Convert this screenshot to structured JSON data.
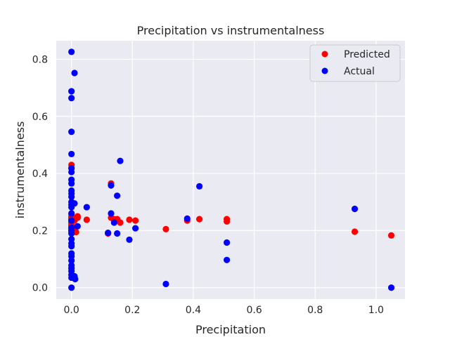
{
  "chart_data": {
    "type": "scatter",
    "title": "Precipitation vs instrumentalness",
    "xlabel": "Precipitation",
    "ylabel": "instrumentalness",
    "xlim": [
      -0.05,
      1.095
    ],
    "ylim": [
      -0.04,
      0.865
    ],
    "xticks": [
      0.0,
      0.2,
      0.4,
      0.6,
      0.8,
      1.0
    ],
    "xtick_labels": [
      "0.0",
      "0.2",
      "0.4",
      "0.6",
      "0.8",
      "1.0"
    ],
    "yticks": [
      0.0,
      0.2,
      0.4,
      0.6,
      0.8
    ],
    "ytick_labels": [
      "0.0",
      "0.2",
      "0.4",
      "0.6",
      "0.8"
    ],
    "grid": true,
    "legend_position": "top-right",
    "colors": {
      "background": "#EAEAF2",
      "grid": "#FFFFFF",
      "predicted": "#FF0000",
      "actual": "#0000FF"
    },
    "series": [
      {
        "name": "Predicted",
        "color": "#FF0000",
        "points": [
          [
            0.0,
            0.43
          ],
          [
            0.0,
            0.42
          ],
          [
            0.0,
            0.26
          ],
          [
            0.0,
            0.25
          ],
          [
            0.0,
            0.245
          ],
          [
            0.0,
            0.24
          ],
          [
            0.0,
            0.235
          ],
          [
            0.0,
            0.23
          ],
          [
            0.0,
            0.225
          ],
          [
            0.0,
            0.22
          ],
          [
            0.0,
            0.215
          ],
          [
            0.0,
            0.21
          ],
          [
            0.0,
            0.205
          ],
          [
            0.0,
            0.2
          ],
          [
            0.0,
            0.195
          ],
          [
            0.005,
            0.245
          ],
          [
            0.01,
            0.2
          ],
          [
            0.01,
            0.235
          ],
          [
            0.015,
            0.195
          ],
          [
            0.02,
            0.245
          ],
          [
            0.02,
            0.25
          ],
          [
            0.05,
            0.238
          ],
          [
            0.12,
            0.19
          ],
          [
            0.13,
            0.245
          ],
          [
            0.13,
            0.365
          ],
          [
            0.14,
            0.24
          ],
          [
            0.15,
            0.24
          ],
          [
            0.16,
            0.228
          ],
          [
            0.19,
            0.238
          ],
          [
            0.21,
            0.235
          ],
          [
            0.31,
            0.205
          ],
          [
            0.38,
            0.235
          ],
          [
            0.42,
            0.24
          ],
          [
            0.51,
            0.24
          ],
          [
            0.51,
            0.232
          ],
          [
            0.93,
            0.196
          ],
          [
            1.05,
            0.183
          ]
        ]
      },
      {
        "name": "Actual",
        "color": "#0000FF",
        "points": [
          [
            0.0,
            0.826
          ],
          [
            0.01,
            0.752
          ],
          [
            0.0,
            0.688
          ],
          [
            0.0,
            0.664
          ],
          [
            0.0,
            0.546
          ],
          [
            0.0,
            0.468
          ],
          [
            0.0,
            0.418
          ],
          [
            0.0,
            0.405
          ],
          [
            0.0,
            0.378
          ],
          [
            0.0,
            0.365
          ],
          [
            0.0,
            0.34
          ],
          [
            0.0,
            0.33
          ],
          [
            0.0,
            0.318
          ],
          [
            0.0,
            0.3
          ],
          [
            0.0,
            0.29
          ],
          [
            0.0,
            0.282
          ],
          [
            0.0,
            0.26
          ],
          [
            0.0,
            0.235
          ],
          [
            0.0,
            0.21
          ],
          [
            0.0,
            0.2
          ],
          [
            0.0,
            0.19
          ],
          [
            0.0,
            0.17
          ],
          [
            0.0,
            0.155
          ],
          [
            0.0,
            0.145
          ],
          [
            0.0,
            0.12
          ],
          [
            0.0,
            0.11
          ],
          [
            0.0,
            0.095
          ],
          [
            0.0,
            0.078
          ],
          [
            0.0,
            0.068
          ],
          [
            0.0,
            0.058
          ],
          [
            0.0,
            0.045
          ],
          [
            0.0,
            0.035
          ],
          [
            0.0,
            0.0
          ],
          [
            0.005,
            0.04
          ],
          [
            0.01,
            0.295
          ],
          [
            0.01,
            0.04
          ],
          [
            0.012,
            0.03
          ],
          [
            0.02,
            0.215
          ],
          [
            0.05,
            0.282
          ],
          [
            0.12,
            0.192
          ],
          [
            0.13,
            0.358
          ],
          [
            0.13,
            0.26
          ],
          [
            0.14,
            0.228
          ],
          [
            0.15,
            0.322
          ],
          [
            0.15,
            0.19
          ],
          [
            0.16,
            0.444
          ],
          [
            0.19,
            0.168
          ],
          [
            0.21,
            0.208
          ],
          [
            0.31,
            0.013
          ],
          [
            0.38,
            0.242
          ],
          [
            0.42,
            0.355
          ],
          [
            0.51,
            0.158
          ],
          [
            0.51,
            0.097
          ],
          [
            0.93,
            0.276
          ],
          [
            1.05,
            0.0
          ]
        ]
      }
    ]
  }
}
